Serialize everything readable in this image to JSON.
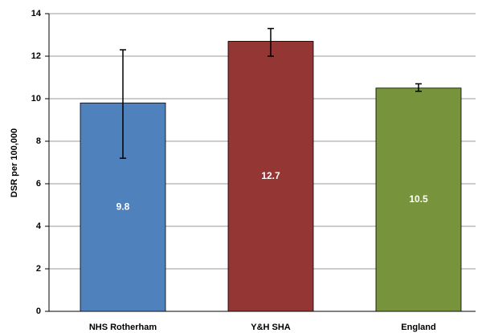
{
  "chart_data": {
    "type": "bar",
    "y_label": "DSR per 100,000",
    "categories": [
      "NHS Rotherham",
      "Y&H SHA",
      "England"
    ],
    "values": [
      9.8,
      12.7,
      10.5
    ],
    "colors": [
      "#4f81bd",
      "#943634",
      "#77933c"
    ],
    "error_low": [
      7.2,
      12.0,
      10.35
    ],
    "error_high": [
      12.3,
      13.3,
      10.7
    ],
    "ylim": [
      0,
      14
    ],
    "yticks": [
      0,
      2,
      4,
      6,
      8,
      10,
      12,
      14
    ],
    "grid": true
  }
}
